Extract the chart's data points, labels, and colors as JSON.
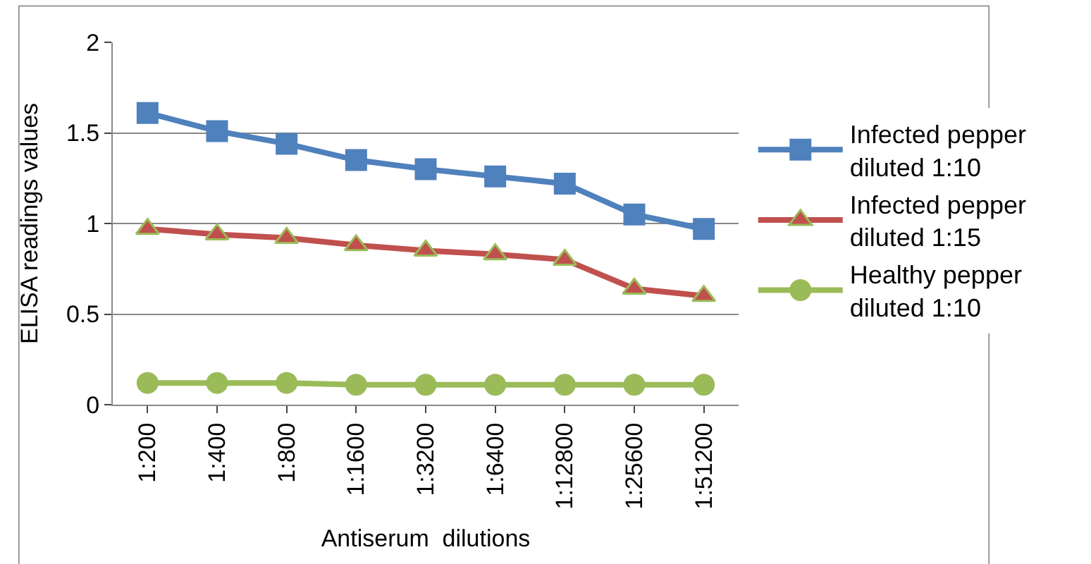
{
  "chart_data": {
    "type": "line",
    "xlabel": "Antiserum  dilutions",
    "ylabel": "ELISA readings values",
    "categories": [
      "1:200",
      "1:400",
      "1:800",
      "1:1600",
      "1:3200",
      "1:6400",
      "1:12800",
      "1:25600",
      "1:51200"
    ],
    "series": [
      {
        "name": "Infected pepper diluted 1:10",
        "color": "#4f81bd",
        "marker": "square",
        "values": [
          1.61,
          1.51,
          1.44,
          1.35,
          1.3,
          1.26,
          1.22,
          1.05,
          0.97
        ]
      },
      {
        "name": "Infected pepper diluted 1:15",
        "color": "#c0504d",
        "marker": "triangle",
        "values": [
          0.97,
          0.94,
          0.92,
          0.88,
          0.85,
          0.83,
          0.8,
          0.64,
          0.6
        ]
      },
      {
        "name": "Healthy pepper diluted 1:10",
        "color": "#9bbb59",
        "marker": "circle",
        "values": [
          0.12,
          0.12,
          0.12,
          0.11,
          0.11,
          0.11,
          0.11,
          0.11,
          0.11
        ]
      }
    ],
    "ylim": [
      0,
      2
    ],
    "yticks": [
      0,
      0.5,
      1,
      1.5,
      2
    ],
    "grid": "y",
    "legend": "right"
  }
}
